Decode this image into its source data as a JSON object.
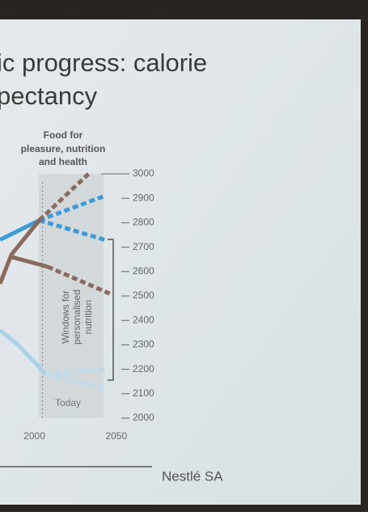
{
  "chart_data": {
    "type": "line",
    "title_lines": [
      "ic progress: calorie",
      "pectancy"
    ],
    "annotation_lines": [
      "Food for",
      "pleasure, nutrition",
      "and health"
    ],
    "window_lines": [
      "Windows for",
      "personalised",
      "nutrition"
    ],
    "today": "Today",
    "xlim": [
      1979,
      2058
    ],
    "xticks": [
      2000,
      2050
    ],
    "ylim": [
      2000,
      3000
    ],
    "yticks": [
      2000,
      2100,
      2200,
      2300,
      2400,
      2500,
      2600,
      2700,
      2800,
      2900,
      3000
    ],
    "series": [
      {
        "color": "#3b9ad8",
        "style": "solid",
        "x": [
          1979,
          2003
        ],
        "values": [
          2730,
          2810
        ]
      },
      {
        "color": "#3b9ad8",
        "style": "dashed",
        "x": [
          2003,
          2043
        ],
        "values": [
          2810,
          2910
        ]
      },
      {
        "color": "#3b9ad8",
        "style": "dashed",
        "x": [
          2003,
          2043
        ],
        "values": [
          2810,
          2730
        ]
      },
      {
        "color": "#8a6a5c",
        "style": "solid",
        "x": [
          1979,
          1986,
          2003
        ],
        "values": [
          2550,
          2670,
          2810
        ]
      },
      {
        "color": "#8a6a5c",
        "style": "dashed",
        "x": [
          2003,
          2033
        ],
        "values": [
          2810,
          3000
        ]
      },
      {
        "color": "#8a6a5c",
        "style": "solid",
        "x": [
          1986,
          2008
        ],
        "values": [
          2660,
          2620
        ]
      },
      {
        "color": "#8a6a5c",
        "style": "dashed",
        "x": [
          2008,
          2046
        ],
        "values": [
          2620,
          2510
        ]
      },
      {
        "color": "#a9d2ea",
        "style": "solid",
        "x": [
          1979,
          1990,
          2007
        ],
        "values": [
          2360,
          2300,
          2180
        ]
      },
      {
        "color": "#bcdcee",
        "style": "dashed",
        "x": [
          2007,
          2043
        ],
        "values": [
          2180,
          2200
        ]
      },
      {
        "color": "#bcdcee",
        "style": "dashed",
        "x": [
          2007,
          2043
        ],
        "values": [
          2180,
          2120
        ]
      }
    ]
  },
  "footer": "Nestlé SA"
}
